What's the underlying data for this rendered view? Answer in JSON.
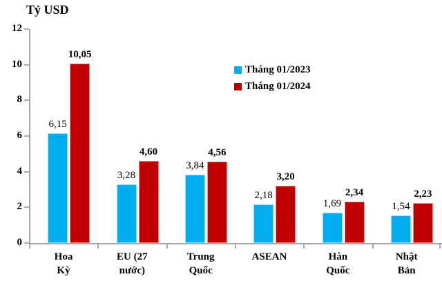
{
  "chart_data": {
    "type": "bar",
    "title": "Tỷ USD",
    "categories": [
      "Hoa Kỳ",
      "EU (27 nước)",
      "Trung Quốc",
      "ASEAN",
      "Hàn Quốc",
      "Nhật Bản"
    ],
    "category_label_lines": [
      [
        "Hoa",
        "Kỳ"
      ],
      [
        "EU (27",
        "nước)"
      ],
      [
        "Trung",
        "Quốc"
      ],
      [
        "ASEAN"
      ],
      [
        "Hàn",
        "Quốc"
      ],
      [
        "Nhật",
        "Bản"
      ]
    ],
    "series": [
      {
        "name": "Tháng 01/2023",
        "values": [
          6.15,
          3.28,
          3.84,
          2.18,
          1.69,
          1.54
        ],
        "labels": [
          "6,15",
          "3,28",
          "3,84",
          "2,18",
          "1,69",
          "1,54"
        ],
        "color": "#00AEEF",
        "border_color": "#9adcf8",
        "label_bold": false
      },
      {
        "name": "Tháng 01/2024",
        "values": [
          10.05,
          4.6,
          4.56,
          3.2,
          2.34,
          2.23
        ],
        "labels": [
          "10,05",
          "4,60",
          "4,56",
          "3,20",
          "2,34",
          "2,23"
        ],
        "color": "#C00000",
        "border_color": "#d99a9a",
        "label_bold": true
      }
    ],
    "ylabel": "Tỷ USD",
    "xlabel": "",
    "ylim": [
      0,
      12
    ],
    "y_ticks": [
      0,
      2,
      4,
      6,
      8,
      10,
      12
    ],
    "y_tick_labels": [
      "0",
      "2",
      "4",
      "6",
      "8",
      "10",
      "12"
    ],
    "grid": false,
    "legend_position": "upper-middle-right",
    "axis_color": "#A6A6A6",
    "text_color": "#000000"
  },
  "legend": {
    "items": [
      {
        "label": "Tháng 01/2023",
        "color": "#00AEEF"
      },
      {
        "label": "Tháng 01/2024",
        "color": "#C00000"
      }
    ]
  }
}
